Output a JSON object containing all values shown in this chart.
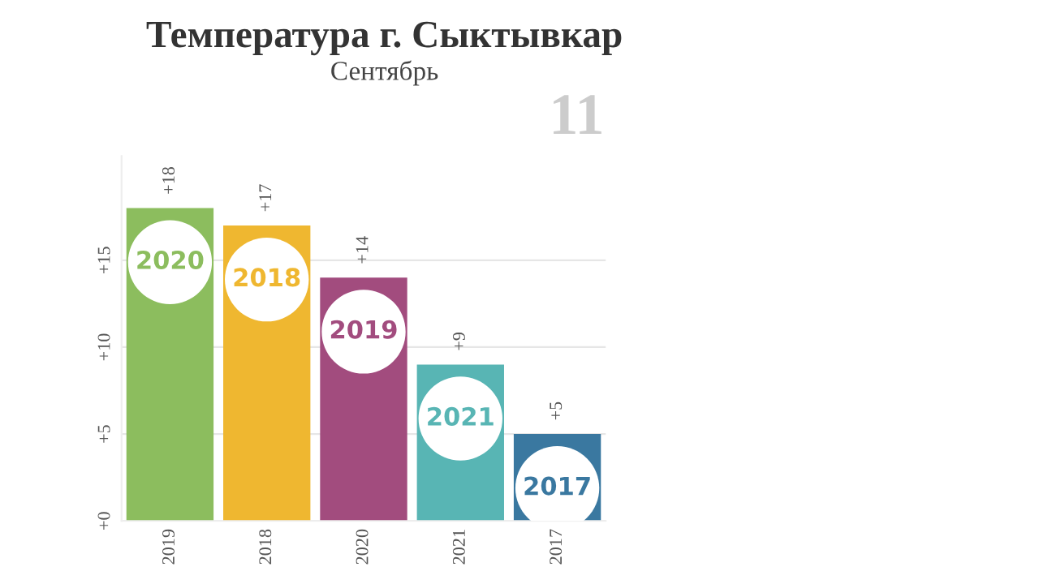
{
  "chart_data": {
    "type": "bar",
    "title": "Температура г. Сыктывкар",
    "subtitle": "Сентябрь",
    "categories": [
      "2019",
      "2018",
      "2020",
      "2021",
      "2017"
    ],
    "values": [
      18,
      17,
      14,
      9,
      5
    ],
    "value_labels": [
      "+18",
      "+17",
      "+14",
      "+9",
      "+5"
    ],
    "colors": [
      "#8cbd5e",
      "#efb730",
      "#a24c7e",
      "#58b5b4",
      "#3a78a0"
    ],
    "ylim": [
      0,
      21
    ],
    "yticks": [
      {
        "value": 0,
        "label": "+0"
      },
      {
        "value": 5,
        "label": "+5"
      },
      {
        "value": 10,
        "label": "+10"
      },
      {
        "value": 15,
        "label": "+15"
      }
    ],
    "grid": "y",
    "annotations": [
      "11",
      "2020",
      "2018",
      "2019",
      "2021",
      "2017"
    ]
  }
}
